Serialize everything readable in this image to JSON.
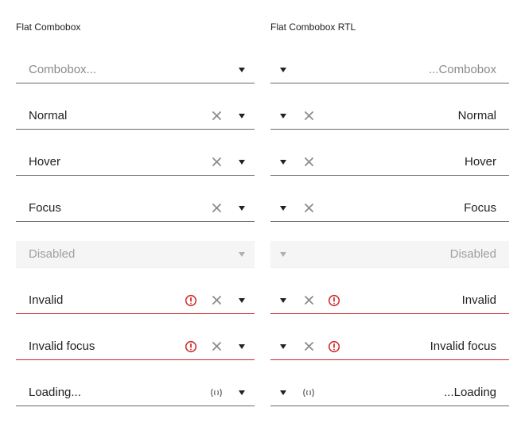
{
  "left": {
    "title": "Flat Combobox",
    "rows": [
      {
        "kind": "placeholder",
        "text": "Combobox..."
      },
      {
        "kind": "value",
        "text": "Normal"
      },
      {
        "kind": "value",
        "text": "Hover"
      },
      {
        "kind": "value",
        "text": "Focus"
      },
      {
        "kind": "disabled",
        "text": "Disabled"
      },
      {
        "kind": "invalid",
        "text": "Invalid"
      },
      {
        "kind": "invalid",
        "text": "Invalid focus"
      },
      {
        "kind": "loading",
        "text": "Loading..."
      }
    ]
  },
  "right": {
    "title": "Flat Combobox RTL",
    "rows": [
      {
        "kind": "placeholder",
        "text": "...Combobox"
      },
      {
        "kind": "value",
        "text": "Normal"
      },
      {
        "kind": "value",
        "text": "Hover"
      },
      {
        "kind": "value",
        "text": "Focus"
      },
      {
        "kind": "disabled",
        "text": "Disabled"
      },
      {
        "kind": "invalid",
        "text": "Invalid"
      },
      {
        "kind": "invalid",
        "text": "Invalid focus"
      },
      {
        "kind": "loading",
        "text": "...Loading"
      }
    ]
  },
  "colors": {
    "border": "#6b6b6b",
    "invalid": "#c62828",
    "error_icon": "#d32f2f",
    "placeholder": "#8a8a8a",
    "disabled_bg": "#f5f5f5"
  },
  "icons": {
    "caret": "caret-down-icon",
    "clear": "clear-icon",
    "error": "error-icon",
    "loading": "loading-icon"
  }
}
